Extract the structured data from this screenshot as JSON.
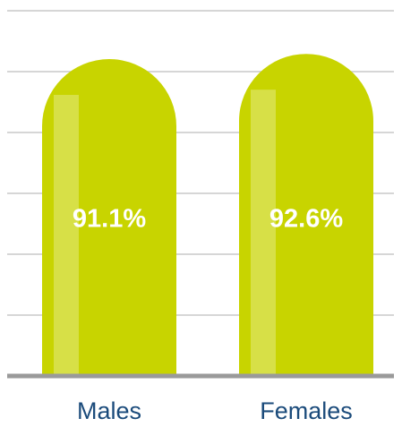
{
  "chart_data": {
    "type": "bar",
    "categories": [
      "Males",
      "Females"
    ],
    "values": [
      91.1,
      92.6
    ],
    "value_labels": [
      "91.1%",
      "92.6%"
    ],
    "color": "#c8d400",
    "ylim": [
      0,
      105
    ]
  }
}
